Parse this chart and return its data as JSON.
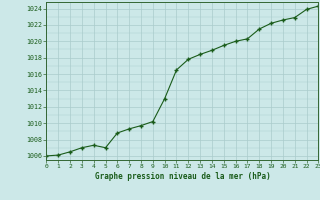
{
  "x": [
    0,
    1,
    2,
    3,
    4,
    5,
    6,
    7,
    8,
    9,
    10,
    11,
    12,
    13,
    14,
    15,
    16,
    17,
    18,
    19,
    20,
    21,
    22,
    23
  ],
  "y": [
    1006.0,
    1006.1,
    1006.5,
    1007.0,
    1007.3,
    1007.0,
    1008.8,
    1009.3,
    1009.7,
    1010.2,
    1013.0,
    1016.5,
    1017.8,
    1018.4,
    1018.9,
    1019.5,
    1020.0,
    1020.3,
    1021.5,
    1022.2,
    1022.6,
    1022.9,
    1023.9,
    1024.3
  ],
  "line_color": "#1a5c1a",
  "marker": "+",
  "marker_size": 3.5,
  "bg_color": "#cce8e8",
  "grid_color": "#aacccc",
  "yticks_major": [
    1006,
    1008,
    1010,
    1012,
    1014,
    1016,
    1018,
    1020,
    1022,
    1024
  ],
  "xticks": [
    0,
    1,
    2,
    3,
    4,
    5,
    6,
    7,
    8,
    9,
    10,
    11,
    12,
    13,
    14,
    15,
    16,
    17,
    18,
    19,
    20,
    21,
    22,
    23
  ],
  "xlabel": "Graphe pression niveau de la mer (hPa)",
  "xlim": [
    0,
    23
  ],
  "ylim": [
    1005.5,
    1024.8
  ]
}
